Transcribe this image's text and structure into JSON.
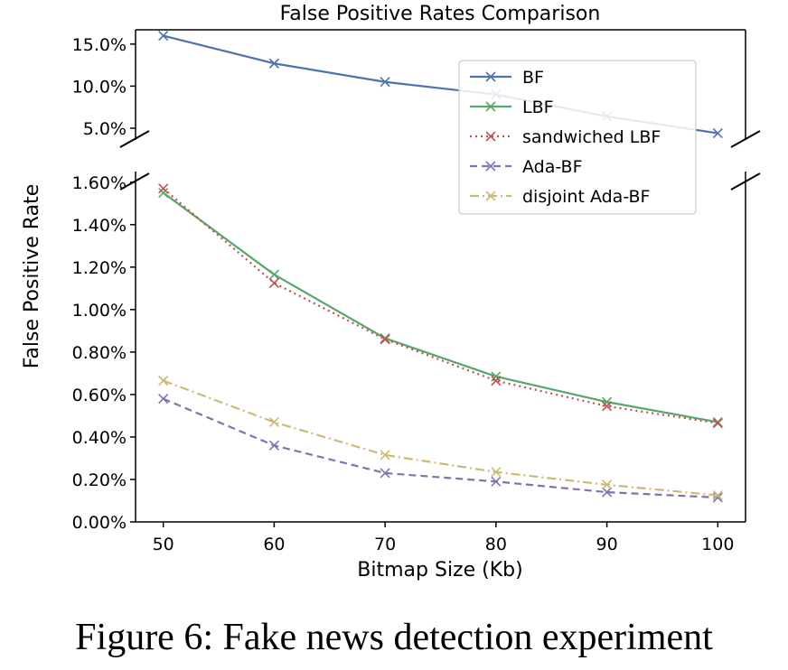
{
  "caption": "Figure 6: Fake news detection experiment",
  "chart_data": {
    "type": "line",
    "title": "False Positive Rates Comparison",
    "xlabel": "Bitmap Size (Kb)",
    "ylabel": "False Positive Rate",
    "x": [
      50,
      60,
      70,
      80,
      90,
      100
    ],
    "xlim": [
      47.5,
      102.5
    ],
    "x_ticks": [
      "50",
      "60",
      "70",
      "80",
      "90",
      "100"
    ],
    "broken_y_axis": true,
    "top_panel": {
      "ylim": [
        3.6,
        16.7
      ],
      "y_ticks": [
        5.0,
        10.0,
        15.0
      ],
      "y_tick_labels": [
        "5.0%",
        "10.0%",
        "15.0%"
      ]
    },
    "bottom_panel": {
      "ylim": [
        0.0,
        1.65
      ],
      "y_ticks": [
        0.0,
        0.2,
        0.4,
        0.6,
        0.8,
        1.0,
        1.2,
        1.4,
        1.6
      ],
      "y_tick_labels": [
        "0.00%",
        "0.20%",
        "0.40%",
        "0.60%",
        "0.80%",
        "1.00%",
        "1.20%",
        "1.40%",
        "1.60%"
      ]
    },
    "units": "%",
    "series": [
      {
        "name": "BF",
        "color": "#4c72b0",
        "dash": "solid",
        "panel": "top",
        "values": [
          16.0,
          12.7,
          10.5,
          9.0,
          6.4,
          4.4
        ]
      },
      {
        "name": "LBF",
        "color": "#55a868",
        "dash": "solid",
        "panel": "bottom",
        "values": [
          1.55,
          1.165,
          0.865,
          0.685,
          0.565,
          0.47
        ]
      },
      {
        "name": "sandwiched LBF",
        "color": "#c44e52",
        "dash": "dotted",
        "panel": "bottom",
        "values": [
          1.57,
          1.125,
          0.86,
          0.665,
          0.545,
          0.465
        ]
      },
      {
        "name": "Ada-BF",
        "color": "#8172b2",
        "dash": "dashed",
        "panel": "bottom",
        "values": [
          0.58,
          0.36,
          0.23,
          0.19,
          0.14,
          0.115
        ]
      },
      {
        "name": "disjoint Ada-BF",
        "color": "#ccb974",
        "dash": "dashdot",
        "panel": "bottom",
        "values": [
          0.665,
          0.47,
          0.315,
          0.235,
          0.175,
          0.125
        ]
      }
    ],
    "legend": "upper-right",
    "grid": false
  }
}
